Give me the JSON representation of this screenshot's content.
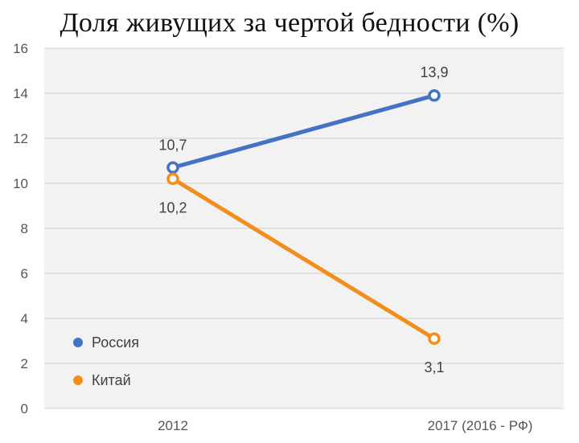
{
  "chart_data": {
    "type": "line",
    "title": "Доля живущих за чертой бедности (%)",
    "categories": [
      "2012",
      "2017 (2016 - РФ)"
    ],
    "ylim": [
      0,
      16
    ],
    "yticks": [
      "0",
      "2",
      "4",
      "6",
      "8",
      "10",
      "12",
      "14",
      "16"
    ],
    "grid": true,
    "legend_position": "bottom-left",
    "series": [
      {
        "name": "Россия",
        "color": "#4472C4",
        "values": [
          10.7,
          13.9
        ],
        "labels": [
          "10,7",
          "13,9"
        ]
      },
      {
        "name": "Китай",
        "color": "#F28E1B",
        "values": [
          10.2,
          3.1
        ],
        "labels": [
          "10,2",
          "3,1"
        ]
      }
    ]
  }
}
